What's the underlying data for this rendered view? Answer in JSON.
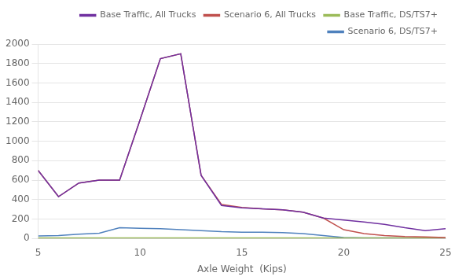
{
  "chart_data": {
    "type": "line",
    "x_label": "Axle Weight  (Kips)",
    "x": [
      5,
      6,
      7,
      8,
      9,
      10,
      11,
      12,
      13,
      14,
      15,
      16,
      17,
      18,
      19,
      20,
      21,
      22,
      23,
      24,
      25
    ],
    "series": [
      {
        "name": "Base Traffic, All Trucks",
        "color": "#7030A0",
        "values": [
          700,
          430,
          570,
          600,
          600,
          1220,
          1850,
          1900,
          650,
          340,
          315,
          305,
          295,
          270,
          210,
          190,
          170,
          145,
          110,
          80,
          100
        ]
      },
      {
        "name": "Scenario 6, All Trucks",
        "color": "#C0504D",
        "values": [
          700,
          430,
          570,
          600,
          600,
          1220,
          1850,
          1900,
          650,
          350,
          320,
          305,
          295,
          270,
          210,
          90,
          50,
          30,
          20,
          15,
          10
        ]
      },
      {
        "name": "Base Traffic, DS/TS7+",
        "color": "#9BBB59",
        "values": [
          5,
          5,
          5,
          5,
          5,
          5,
          5,
          5,
          5,
          5,
          5,
          5,
          5,
          5,
          5,
          5,
          5,
          5,
          5,
          5,
          5
        ]
      },
      {
        "name": "Scenario 6, DS/TS7+",
        "color": "#4F81BD",
        "values": [
          25,
          30,
          45,
          55,
          110,
          105,
          100,
          90,
          80,
          70,
          65,
          65,
          60,
          50,
          30,
          10,
          5,
          5,
          5,
          5,
          5
        ]
      }
    ],
    "xlim": [
      5,
      25
    ],
    "ylim": [
      0,
      2000
    ],
    "xticks": [
      5,
      10,
      15,
      20,
      25
    ],
    "yticks": [
      0,
      200,
      400,
      600,
      800,
      1000,
      1200,
      1400,
      1600,
      1800,
      2000
    ],
    "grid": "y",
    "legend": "upper right"
  }
}
